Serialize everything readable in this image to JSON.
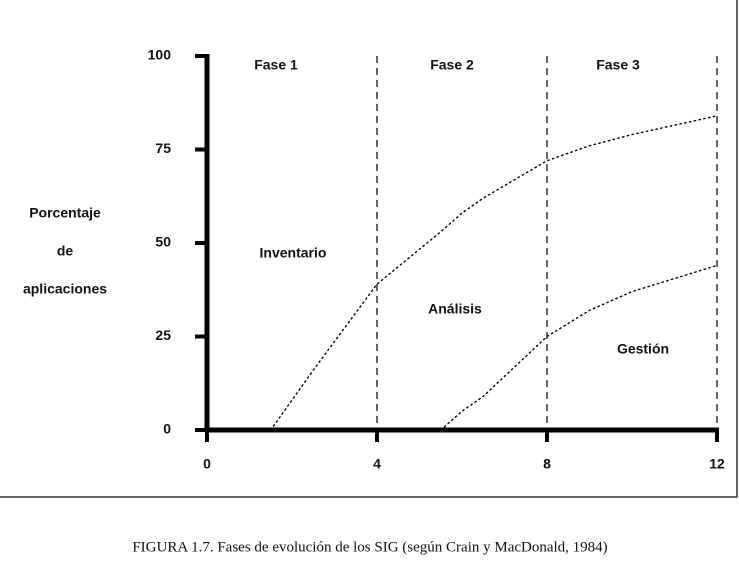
{
  "chart_data": {
    "type": "line",
    "ylabel": [
      "Porcentaje",
      "de",
      "aplicaciones"
    ],
    "x": [
      1.5,
      2.5,
      4,
      5.5,
      6,
      6.5,
      8,
      9,
      10,
      12
    ],
    "series": [
      {
        "color": "#000000",
        "values": [
          0,
          16,
          39,
          53,
          58,
          62,
          72,
          76,
          79,
          84
        ]
      },
      {
        "color": "#000000",
        "values": [
          null,
          null,
          null,
          0,
          5,
          9,
          25,
          32,
          37,
          44
        ]
      }
    ],
    "xlim": [
      0,
      12
    ],
    "xticks": [
      0,
      4,
      8,
      12
    ],
    "ylim": [
      0,
      100
    ],
    "yticks": [
      0,
      25,
      50,
      75,
      100
    ],
    "phase_boundaries": [
      4,
      8,
      12
    ],
    "phase_labels": [
      "Fase 1",
      "Fase 2",
      "Fase 3"
    ],
    "region_labels": [
      "Inventario",
      "Análisis",
      "Gestión"
    ],
    "caption": "FIGURA 1.7. Fases de evolución de los SIG (según Crain y MacDonald, 1984)"
  }
}
